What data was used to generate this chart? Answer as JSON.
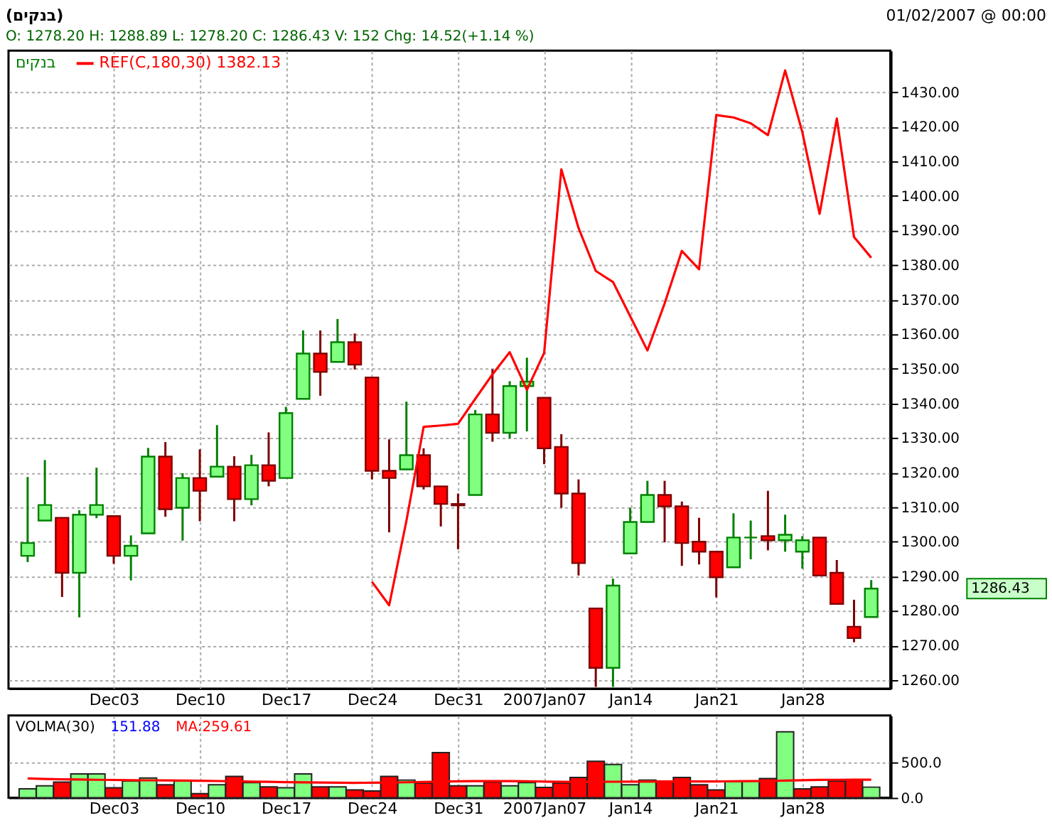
{
  "chart_data": [
    {
      "type": "candlestick",
      "title": "(בנקים)",
      "subtitle": "O: 1278.20 H: 1288.89 L: 1278.20 C: 1286.43 V: 152 Chg: 14.52(+1.14 %)",
      "categories": [
        null,
        null,
        null,
        null,
        null,
        "Dec03",
        null,
        null,
        null,
        null,
        "Dec10",
        null,
        null,
        null,
        null,
        "Dec17",
        null,
        null,
        null,
        null,
        "Dec24",
        null,
        null,
        null,
        null,
        "Dec31",
        null,
        null,
        null,
        null,
        "2007Jan07",
        null,
        null,
        null,
        null,
        "Jan14",
        null,
        null,
        null,
        null,
        "Jan21",
        null,
        null,
        null,
        null,
        "Jan28",
        null,
        null,
        null,
        null
      ],
      "series": [
        {
          "name": "בנקים",
          "colors": [
            "#80ff80",
            "#80ff80",
            "#ff0000",
            "#80ff80",
            "#80ff80",
            "#ff0000",
            "#80ff80",
            "#80ff80",
            "#ff0000",
            "#80ff80",
            "#ff0000",
            "#80ff80",
            "#ff0000",
            "#80ff80",
            "#ff0000",
            "#80ff80",
            "#80ff80",
            "#ff0000",
            "#80ff80",
            "#ff0000",
            "#ff0000",
            "#ff0000",
            "#80ff80",
            "#ff0000",
            "#ff0000",
            "#ff0000",
            "#80ff80",
            "#ff0000",
            "#80ff80",
            "#80ff80",
            "#ff0000",
            "#ff0000",
            "#ff0000",
            "#ff0000",
            "#80ff80",
            "#80ff80",
            "#80ff80",
            "#ff0000",
            "#ff0000",
            "#ff0000",
            "#ff0000",
            "#80ff80",
            "#008000",
            "#ff0000",
            "#80ff80",
            "#80ff80",
            "#ff0000",
            "#ff0000",
            "#ff0000",
            "#80ff80"
          ],
          "ohlc": [
            [
              1295.9,
              1318.7,
              1294.1,
              1299.6
            ],
            [
              1306.1,
              1323.6,
              1306.1,
              1310.6
            ],
            [
              1306.9,
              1306.9,
              1284.0,
              1291.0
            ],
            [
              1291.0,
              1309.1,
              1278.1,
              1307.8
            ],
            [
              1307.8,
              1321.4,
              1306.8,
              1310.6
            ],
            [
              1307.4,
              1307.4,
              1293.6,
              1295.9
            ],
            [
              1295.9,
              1301.8,
              1288.8,
              1298.8
            ],
            [
              1302.4,
              1327.1,
              1302.4,
              1324.6
            ],
            [
              1324.6,
              1328.8,
              1307.2,
              1309.4
            ],
            [
              1309.8,
              1319.8,
              1300.3,
              1318.4
            ],
            [
              1318.4,
              1326.7,
              1305.9,
              1314.7
            ],
            [
              1318.8,
              1333.7,
              1318.8,
              1321.7
            ],
            [
              1321.7,
              1324.7,
              1305.9,
              1312.3
            ],
            [
              1312.3,
              1325.1,
              1310.5,
              1322.1
            ],
            [
              1322.1,
              1331.6,
              1316.0,
              1317.6
            ],
            [
              1318.4,
              1339.0,
              1318.4,
              1337.2
            ],
            [
              1341.3,
              1361.1,
              1341.3,
              1354.4
            ],
            [
              1354.4,
              1361.1,
              1342.2,
              1349.1
            ],
            [
              1352.0,
              1364.4,
              1352.0,
              1357.7
            ],
            [
              1357.7,
              1360.2,
              1349.8,
              1351.2
            ],
            [
              1347.5,
              1347.5,
              1318.0,
              1320.5
            ],
            [
              1320.5,
              1329.6,
              1302.7,
              1318.4
            ],
            [
              1320.9,
              1340.5,
              1320.9,
              1325.0
            ],
            [
              1325.0,
              1327.0,
              1315.1,
              1316.0
            ],
            [
              1316.0,
              1316.0,
              1304.4,
              1310.9
            ],
            [
              1310.9,
              1313.9,
              1297.8,
              1310.5
            ],
            [
              1313.5,
              1338.1,
              1313.5,
              1336.8
            ],
            [
              1336.8,
              1349.9,
              1328.9,
              1331.5
            ],
            [
              1331.5,
              1346.4,
              1329.9,
              1345.0
            ],
            [
              1345.0,
              1353.2,
              1331.9,
              1346.3
            ],
            [
              1341.6,
              1341.6,
              1322.4,
              1327.0
            ],
            [
              1327.4,
              1331.1,
              1309.8,
              1313.9
            ],
            [
              1313.9,
              1318.0,
              1290.2,
              1293.8
            ],
            [
              1280.7,
              1280.7,
              1258.0,
              1263.5
            ],
            [
              1263.5,
              1289.3,
              1258.0,
              1287.3
            ],
            [
              1296.6,
              1309.8,
              1296.6,
              1305.7
            ],
            [
              1305.7,
              1317.6,
              1305.7,
              1313.5
            ],
            [
              1313.5,
              1317.6,
              1299.8,
              1310.2
            ],
            [
              1310.2,
              1311.6,
              1293.0,
              1299.6
            ],
            [
              1300.0,
              1306.9,
              1293.4,
              1297.1
            ],
            [
              1297.1,
              1297.1,
              1283.9,
              1289.7
            ],
            [
              1292.6,
              1308.2,
              1292.6,
              1301.2
            ],
            [
              1301.2,
              1306.1,
              1294.9,
              1301.2
            ],
            [
              1301.6,
              1314.7,
              1297.5,
              1300.4
            ],
            [
              1300.4,
              1307.8,
              1297.1,
              1302.0
            ],
            [
              1297.1,
              1301.6,
              1292.2,
              1300.4
            ],
            [
              1301.2,
              1301.2,
              1290.2,
              1290.2
            ],
            [
              1291.0,
              1294.7,
              1282.0,
              1282.0
            ],
            [
              1275.4,
              1283.2,
              1270.9,
              1272.1
            ],
            [
              1278.2,
              1288.89,
              1278.2,
              1286.43
            ]
          ]
        },
        {
          "name": "REF(C,180,30) 1382.13",
          "type": "line",
          "color": "#ff0000",
          "values": [
            null,
            null,
            null,
            null,
            null,
            null,
            null,
            null,
            null,
            null,
            null,
            null,
            null,
            null,
            null,
            null,
            null,
            null,
            null,
            null,
            1288.4,
            1281.6,
            1306.0,
            1333.2,
            1333.6,
            1334.1,
            1341.3,
            1348.4,
            1354.8,
            1343.9,
            1354.6,
            1407.7,
            1390.7,
            1378.3,
            1375.1,
            1365.2,
            1355.3,
            1368.9,
            1384.1,
            1378.8,
            1423.4,
            1422.7,
            1421.0,
            1417.6,
            1436.3,
            1418.4,
            1394.8,
            1422.4,
            1388.1,
            1382.13
          ]
        }
      ],
      "ylim": [
        1257.5,
        1442
      ],
      "yticks": [
        {
          "value": 1260,
          "label": "1260.00"
        },
        {
          "value": 1270,
          "label": "1270.00"
        },
        {
          "value": 1280,
          "label": "1280.00"
        },
        {
          "value": 1290,
          "label": "1290.00"
        },
        {
          "value": 1300,
          "label": "1300.00"
        },
        {
          "value": 1310,
          "label": "1310.00"
        },
        {
          "value": 1320,
          "label": "1320.00"
        },
        {
          "value": 1330,
          "label": "1330.00"
        },
        {
          "value": 1340,
          "label": "1340.00"
        },
        {
          "value": 1350,
          "label": "1350.00"
        },
        {
          "value": 1360,
          "label": "1360.00"
        },
        {
          "value": 1370,
          "label": "1370.00"
        },
        {
          "value": 1380,
          "label": "1380.00"
        },
        {
          "value": 1390,
          "label": "1390.00"
        },
        {
          "value": 1400,
          "label": "1400.00"
        },
        {
          "value": 1410,
          "label": "1410.00"
        },
        {
          "value": 1420,
          "label": "1420.00"
        },
        {
          "value": 1430,
          "label": "1430.00"
        }
      ],
      "grid": true,
      "legend": "top left",
      "annotations": [
        "01/02/2007 @ 00:00",
        "1286.43"
      ]
    },
    {
      "type": "bar",
      "title": "VOLMA(30)",
      "categories": [
        null,
        null,
        null,
        null,
        null,
        "Dec03",
        null,
        null,
        null,
        null,
        "Dec10",
        null,
        null,
        null,
        null,
        "Dec17",
        null,
        null,
        null,
        null,
        "Dec24",
        null,
        null,
        null,
        null,
        "Dec31",
        null,
        null,
        null,
        null,
        "2007Jan07",
        null,
        null,
        null,
        null,
        "Jan14",
        null,
        null,
        null,
        null,
        "Jan21",
        null,
        null,
        null,
        null,
        "Jan28",
        null,
        null,
        null,
        null
      ],
      "series": [
        {
          "values": [
            127,
            172,
            224,
            343,
            343,
            142,
            239,
            284,
            187,
            239,
            60,
            187,
            306,
            216,
            157,
            142,
            343,
            157,
            157,
            112,
            97,
            306,
            254,
            209,
            649,
            172,
            172,
            224,
            172,
            216,
            149,
            209,
            291,
            522,
            477,
            187,
            254,
            239,
            291,
            187,
            112,
            239,
            239,
            276,
            947,
            127,
            157,
            239,
            254,
            152
          ],
          "colors": [
            "#80ff80",
            "#80ff80",
            "#ff0000",
            "#80ff80",
            "#80ff80",
            "#ff0000",
            "#80ff80",
            "#80ff80",
            "#ff0000",
            "#80ff80",
            "#ff0000",
            "#80ff80",
            "#ff0000",
            "#80ff80",
            "#ff0000",
            "#80ff80",
            "#80ff80",
            "#ff0000",
            "#80ff80",
            "#ff0000",
            "#ff0000",
            "#ff0000",
            "#80ff80",
            "#ff0000",
            "#ff0000",
            "#ff0000",
            "#80ff80",
            "#ff0000",
            "#80ff80",
            "#80ff80",
            "#ff0000",
            "#ff0000",
            "#ff0000",
            "#ff0000",
            "#80ff80",
            "#80ff80",
            "#80ff80",
            "#ff0000",
            "#ff0000",
            "#ff0000",
            "#ff0000",
            "#80ff80",
            "#80ff80",
            "#ff0000",
            "#80ff80",
            "#ff0000",
            "#ff0000",
            "#ff0000",
            "#ff0000",
            "#80ff80"
          ]
        },
        {
          "name": "MA:259.61",
          "type": "line",
          "color": "#ff0000",
          "values": [
            276,
            270,
            265,
            262,
            258,
            255,
            252,
            250,
            248,
            246,
            244,
            240,
            236,
            232,
            228,
            224,
            220,
            218,
            216,
            214,
            216,
            218,
            222,
            226,
            232,
            236,
            238,
            239,
            238,
            236,
            232,
            228,
            226,
            228,
            230,
            231,
            232,
            234,
            234,
            234,
            234,
            236,
            238,
            240,
            246,
            252,
            256,
            258,
            260,
            259.61
          ]
        }
      ],
      "ylim": [
        0,
        1180
      ],
      "yticks": [
        {
          "value": 0,
          "label": "0.0"
        },
        {
          "value": 500,
          "label": "500.0"
        }
      ],
      "grid": true,
      "annotations": [
        "151.88"
      ]
    }
  ]
}
